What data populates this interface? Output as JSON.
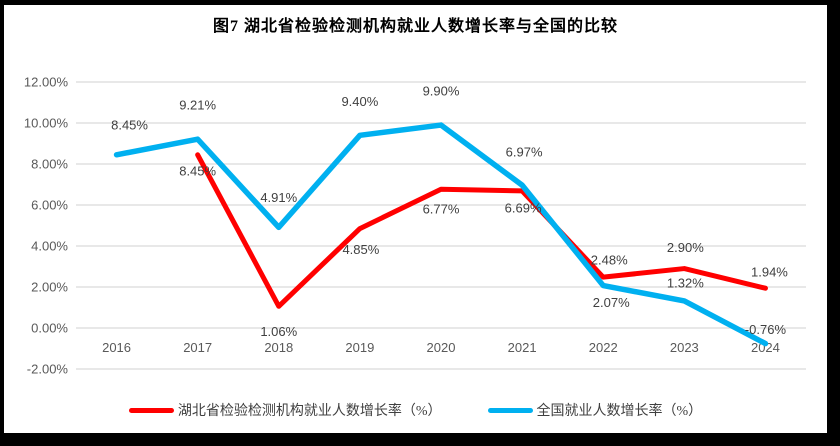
{
  "title": "图7 湖北省检验检测机构就业人数增长率与全国的比较",
  "chart_data": {
    "type": "line",
    "categories": [
      "2016",
      "2017",
      "2018",
      "2019",
      "2020",
      "2021",
      "2022",
      "2023",
      "2024"
    ],
    "series": [
      {
        "name": "湖北省检验检测机构就业人数增长率（%）",
        "color": "#FF0000",
        "values": [
          null,
          8.45,
          1.06,
          4.85,
          6.77,
          6.69,
          2.48,
          2.9,
          1.94
        ],
        "labels": [
          "",
          "8.45%",
          "1.06%",
          "4.85%",
          "6.77%",
          "6.69%",
          "2.48%",
          "2.90%",
          "1.94%"
        ],
        "label_offsets": [
          [
            0,
            0
          ],
          [
            0,
            16
          ],
          [
            0,
            25
          ],
          [
            1,
            21
          ],
          [
            0,
            20
          ],
          [
            1,
            17
          ],
          [
            6,
            -17
          ],
          [
            1,
            -21
          ],
          [
            4,
            -16
          ]
        ],
        "stroke_width": 5
      },
      {
        "name": "全国就业人数增长率（%）",
        "color": "#00B0F0",
        "values": [
          8.45,
          9.21,
          4.91,
          9.4,
          9.9,
          6.97,
          2.07,
          1.32,
          -0.76
        ],
        "labels": [
          "8.45%",
          "9.21%",
          "4.91%",
          "9.40%",
          "9.90%",
          "6.97%",
          "2.07%",
          "1.32%",
          "-0.76%"
        ],
        "label_offsets": [
          [
            13,
            -30
          ],
          [
            0,
            -34
          ],
          [
            0,
            -30
          ],
          [
            0,
            -34
          ],
          [
            0,
            -34
          ],
          [
            2,
            -33
          ],
          [
            8,
            17
          ],
          [
            1,
            -18
          ],
          [
            0,
            -14
          ]
        ],
        "stroke_width": 5.5
      }
    ],
    "y_axis": {
      "min": -2,
      "max": 12,
      "step": 2,
      "tick_labels": [
        "12.00%",
        "10.00%",
        "8.00%",
        "6.00%",
        "4.00%",
        "2.00%",
        "0.00%",
        "-2.00%"
      ]
    },
    "grid": true,
    "legend_position": "bottom"
  },
  "colors": {
    "hubei_series": "#FF0000",
    "national_series": "#00B0F0",
    "gridline": "#D9D9D9",
    "axis_text": "#595959",
    "data_label_text": "#404040",
    "frame": "#000000",
    "background": "#FFFFFF"
  }
}
